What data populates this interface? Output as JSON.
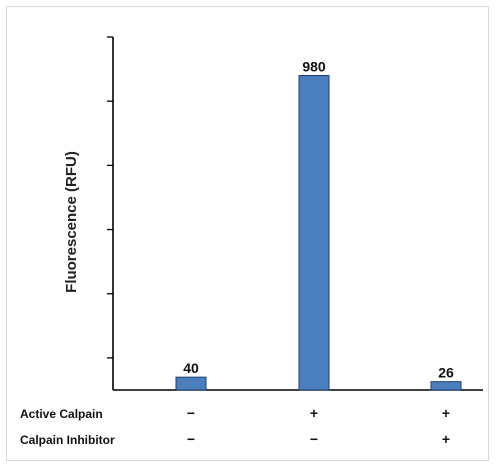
{
  "chart_data": {
    "type": "bar",
    "categories": [
      "",
      "",
      ""
    ],
    "values": [
      40,
      980,
      26
    ],
    "data_labels": [
      "40",
      "980",
      "26"
    ],
    "ylabel": "Fluorescence (RFU)",
    "ylim": [
      0,
      1100
    ],
    "y_ticks": [
      100,
      300,
      500,
      700,
      900,
      1100
    ],
    "bar_color": "#4a7ebd",
    "bar_edge_color": "#1f3f6e",
    "grid": false,
    "conditions": [
      {
        "label": "Active Calpain",
        "signs": [
          "−",
          "+",
          "+"
        ]
      },
      {
        "label": "Calpain Inhibitor",
        "signs": [
          "−",
          "−",
          "+"
        ]
      }
    ]
  }
}
